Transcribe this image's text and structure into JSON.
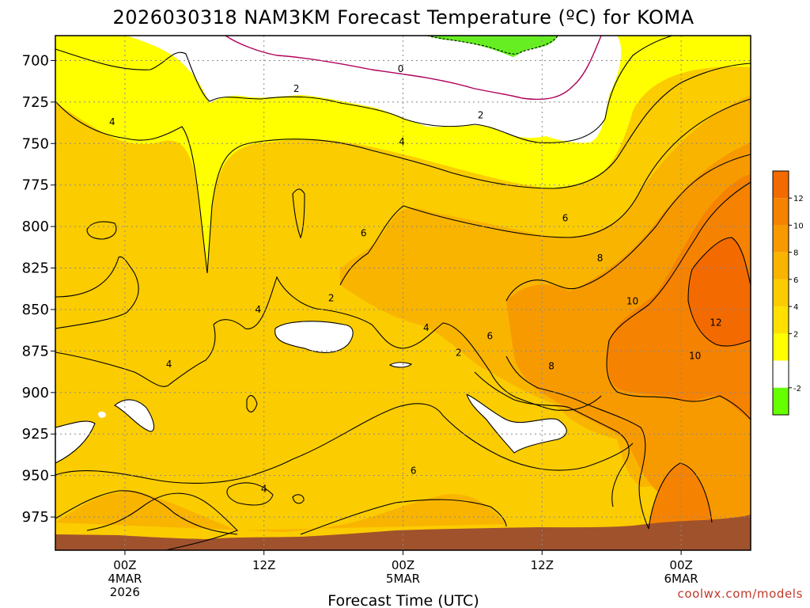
{
  "chart_data": {
    "type": "contour",
    "title": "2026030318 NAM3KM Forecast Temperature (ºC) for KOMA",
    "xlabel": "Forecast Time (UTC)",
    "credit": "coolwx.com/models",
    "y_ticks": [
      "700",
      "725",
      "750",
      "775",
      "800",
      "825",
      "850",
      "875",
      "900",
      "925",
      "950",
      "975"
    ],
    "y_range_hpa": [
      685,
      995
    ],
    "x_ticks": [
      {
        "lines": [
          "00Z",
          "4MAR",
          "2026"
        ],
        "hour": 6
      },
      {
        "lines": [
          "12Z"
        ],
        "hour": 18
      },
      {
        "lines": [
          "00Z",
          "5MAR"
        ],
        "hour": 30
      },
      {
        "lines": [
          "12Z"
        ],
        "hour": 42
      },
      {
        "lines": [
          "00Z",
          "6MAR"
        ],
        "hour": 54
      }
    ],
    "x_range_hours": [
      0,
      60
    ],
    "contour_levels": [
      -2,
      0,
      2,
      4,
      6,
      8,
      10,
      12
    ],
    "contour_labels": [
      {
        "text": "0",
        "hour": 29.8,
        "p": 705
      },
      {
        "text": "2",
        "hour": 20.8,
        "p": 717
      },
      {
        "text": "2",
        "hour": 36.7,
        "p": 733
      },
      {
        "text": "4",
        "hour": 4.9,
        "p": 737
      },
      {
        "text": "4",
        "hour": 29.9,
        "p": 749
      },
      {
        "text": "6",
        "hour": 26.6,
        "p": 804
      },
      {
        "text": "6",
        "hour": 44.0,
        "p": 795
      },
      {
        "text": "8",
        "hour": 47.0,
        "p": 819
      },
      {
        "text": "10",
        "hour": 49.8,
        "p": 845
      },
      {
        "text": "12",
        "hour": 57.0,
        "p": 858
      },
      {
        "text": "10",
        "hour": 55.2,
        "p": 878
      },
      {
        "text": "8",
        "hour": 42.8,
        "p": 884
      },
      {
        "text": "6",
        "hour": 37.5,
        "p": 866
      },
      {
        "text": "2",
        "hour": 34.8,
        "p": 876
      },
      {
        "text": "4",
        "hour": 32.0,
        "p": 861
      },
      {
        "text": "2",
        "hour": 23.8,
        "p": 843
      },
      {
        "text": "4",
        "hour": 17.5,
        "p": 850
      },
      {
        "text": "4",
        "hour": 9.8,
        "p": 883
      },
      {
        "text": "6",
        "hour": 30.9,
        "p": 947
      },
      {
        "text": "4",
        "hour": 18.0,
        "p": 958
      }
    ],
    "colorbar": {
      "labels": [
        "12",
        "10",
        "8",
        "6",
        "4",
        "2",
        "-2"
      ],
      "colors": [
        "#f26a00",
        "#f58200",
        "#f79a00",
        "#f9b400",
        "#fbcc00",
        "#ffe000",
        "#ffff00",
        "#ffffff",
        "#66ff00"
      ]
    },
    "colors": {
      "bg_yellow": "#ffff00",
      "c2_4": "#fbe800",
      "c4_6": "#fbc800",
      "c6_8": "#f9a800",
      "c8_10": "#f69200",
      "c10_12": "#f37a00",
      "c12_plus": "#f06400",
      "below_2": "#ffffff",
      "below_neg2": "#66ee22",
      "zero_line": "#b0005a",
      "ground": "#a0522d"
    }
  }
}
